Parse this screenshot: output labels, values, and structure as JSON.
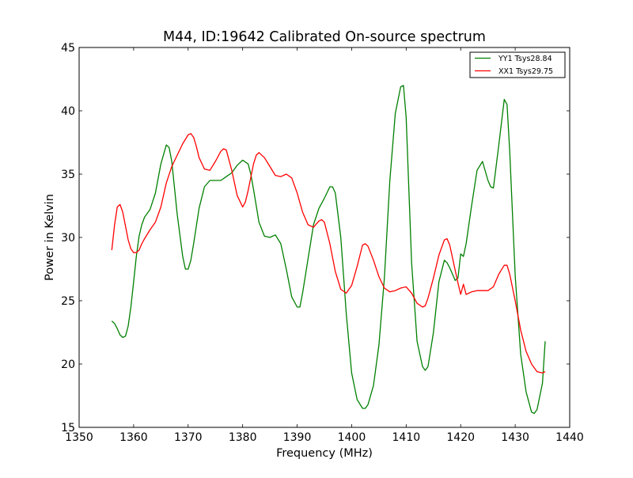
{
  "chart_data": {
    "type": "line",
    "title": "M44, ID:19642 Calibrated On-source spectrum",
    "xlabel": "Frequency (MHz)",
    "ylabel": "Power in Kelvin",
    "xlim": [
      1350,
      1440
    ],
    "ylim": [
      15,
      45
    ],
    "xticks": [
      1350,
      1360,
      1370,
      1380,
      1390,
      1400,
      1410,
      1420,
      1430,
      1440
    ],
    "yticks": [
      15,
      20,
      25,
      30,
      35,
      40,
      45
    ],
    "grid": false,
    "legend_position": "top-right",
    "series": [
      {
        "name": "YY1 Tsys28.84",
        "color": "#008000",
        "x": [
          1356.0,
          1356.5,
          1357.0,
          1357.5,
          1358.0,
          1358.5,
          1359.0,
          1359.5,
          1360.0,
          1360.5,
          1361.0,
          1361.5,
          1362.0,
          1363.0,
          1364.0,
          1365.0,
          1366.0,
          1366.5,
          1367.0,
          1368.0,
          1369.0,
          1369.5,
          1370.0,
          1370.5,
          1371.0,
          1372.0,
          1373.0,
          1374.0,
          1375.0,
          1376.0,
          1377.0,
          1378.0,
          1379.0,
          1380.0,
          1381.0,
          1381.5,
          1382.0,
          1383.0,
          1384.0,
          1385.0,
          1386.0,
          1387.0,
          1388.0,
          1389.0,
          1390.0,
          1390.5,
          1391.0,
          1392.0,
          1393.0,
          1394.0,
          1395.0,
          1396.0,
          1396.5,
          1397.0,
          1398.0,
          1399.0,
          1400.0,
          1401.0,
          1402.0,
          1402.5,
          1403.0,
          1404.0,
          1405.0,
          1406.0,
          1407.0,
          1408.0,
          1409.0,
          1409.5,
          1410.0,
          1411.0,
          1412.0,
          1413.0,
          1413.5,
          1414.0,
          1415.0,
          1416.0,
          1417.0,
          1417.5,
          1418.0,
          1419.0,
          1419.5,
          1420.0,
          1420.5,
          1421.0,
          1422.0,
          1423.0,
          1424.0,
          1425.0,
          1425.5,
          1426.0,
          1427.0,
          1428.0,
          1428.5,
          1429.0,
          1430.0,
          1431.0,
          1432.0,
          1433.0,
          1433.5,
          1434.0,
          1435.0,
          1435.5
        ],
        "y": [
          23.4,
          23.2,
          22.8,
          22.3,
          22.1,
          22.2,
          23.0,
          24.5,
          26.5,
          28.5,
          30.1,
          31.0,
          31.6,
          32.2,
          33.5,
          35.8,
          37.3,
          37.1,
          36.0,
          31.8,
          28.5,
          27.5,
          27.5,
          28.2,
          29.5,
          32.3,
          34.0,
          34.5,
          34.5,
          34.5,
          34.8,
          35.1,
          35.7,
          36.1,
          35.8,
          35.0,
          33.8,
          31.2,
          30.1,
          30.0,
          30.2,
          29.5,
          27.5,
          25.3,
          24.5,
          24.5,
          25.6,
          28.3,
          31.0,
          32.3,
          33.1,
          34.0,
          34.0,
          33.5,
          30.0,
          24.0,
          19.3,
          17.2,
          16.5,
          16.5,
          16.8,
          18.3,
          21.5,
          26.8,
          34.5,
          39.8,
          41.9,
          42.0,
          39.5,
          28.0,
          21.8,
          19.8,
          19.5,
          19.8,
          22.5,
          26.5,
          28.2,
          28.0,
          27.6,
          26.6,
          26.8,
          28.7,
          28.5,
          29.5,
          32.5,
          35.3,
          36.0,
          34.5,
          34.0,
          33.9,
          37.3,
          40.9,
          40.5,
          36.8,
          27.0,
          20.8,
          17.8,
          16.2,
          16.1,
          16.4,
          18.5,
          21.8
        ]
      },
      {
        "name": "XX1 Tsys29.75",
        "color": "#ff0000",
        "x": [
          1356.0,
          1356.5,
          1357.0,
          1357.5,
          1358.0,
          1358.5,
          1359.0,
          1359.5,
          1360.0,
          1360.5,
          1361.0,
          1361.5,
          1362.0,
          1363.0,
          1364.0,
          1365.0,
          1366.0,
          1367.0,
          1368.0,
          1369.0,
          1370.0,
          1370.5,
          1371.0,
          1371.5,
          1372.0,
          1373.0,
          1374.0,
          1375.0,
          1376.0,
          1376.5,
          1377.0,
          1378.0,
          1379.0,
          1380.0,
          1380.5,
          1381.0,
          1382.0,
          1382.5,
          1383.0,
          1384.0,
          1385.0,
          1386.0,
          1387.0,
          1388.0,
          1389.0,
          1390.0,
          1391.0,
          1392.0,
          1393.0,
          1394.0,
          1394.5,
          1395.0,
          1396.0,
          1397.0,
          1398.0,
          1399.0,
          1400.0,
          1401.0,
          1402.0,
          1402.5,
          1403.0,
          1404.0,
          1405.0,
          1406.0,
          1407.0,
          1408.0,
          1409.0,
          1410.0,
          1411.0,
          1412.0,
          1413.0,
          1413.5,
          1414.0,
          1415.0,
          1416.0,
          1417.0,
          1417.5,
          1418.0,
          1419.0,
          1419.5,
          1420.0,
          1420.5,
          1421.0,
          1422.0,
          1423.0,
          1424.0,
          1425.0,
          1426.0,
          1427.0,
          1428.0,
          1428.5,
          1429.0,
          1430.0,
          1431.0,
          1432.0,
          1433.0,
          1434.0,
          1435.0,
          1435.5
        ],
        "y": [
          29.0,
          31.0,
          32.4,
          32.6,
          32.0,
          30.9,
          29.8,
          29.1,
          28.8,
          28.8,
          29.0,
          29.5,
          29.9,
          30.6,
          31.2,
          32.4,
          34.3,
          35.6,
          36.5,
          37.4,
          38.1,
          38.2,
          37.9,
          37.2,
          36.3,
          35.4,
          35.3,
          36.0,
          36.8,
          37.0,
          36.9,
          35.3,
          33.3,
          32.4,
          32.8,
          33.7,
          35.8,
          36.5,
          36.7,
          36.3,
          35.6,
          34.9,
          34.8,
          35.0,
          34.7,
          33.5,
          32.0,
          31.0,
          30.8,
          31.3,
          31.4,
          31.2,
          29.5,
          27.3,
          25.9,
          25.6,
          26.2,
          27.7,
          29.4,
          29.5,
          29.3,
          28.2,
          26.9,
          26.0,
          25.7,
          25.8,
          26.0,
          26.1,
          25.6,
          24.8,
          24.5,
          24.6,
          25.2,
          26.8,
          28.6,
          29.8,
          29.9,
          29.4,
          27.4,
          26.4,
          25.5,
          26.3,
          25.5,
          25.7,
          25.8,
          25.8,
          25.8,
          26.1,
          27.1,
          27.8,
          27.8,
          27.1,
          25.0,
          22.7,
          21.0,
          20.0,
          19.4,
          19.3,
          19.4
        ]
      }
    ]
  }
}
